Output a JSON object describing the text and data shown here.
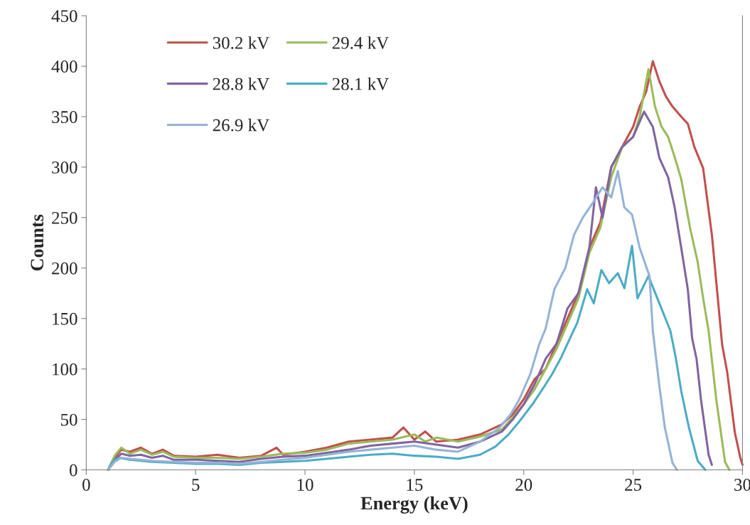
{
  "chart_data": {
    "type": "line",
    "xlabel": "Energy (keV)",
    "ylabel": "Counts",
    "xlim": [
      0,
      30
    ],
    "ylim": [
      0,
      450
    ],
    "xticks": [
      0,
      5,
      10,
      15,
      20,
      25,
      30
    ],
    "yticks": [
      0,
      50,
      100,
      150,
      200,
      250,
      300,
      350,
      400,
      450
    ],
    "grid": false,
    "legend": "top left",
    "marker": "none",
    "line_style": "solid",
    "series": [
      {
        "name": "30.2 kV",
        "color": "#c0504d",
        "x": [
          1.0,
          1.3,
          1.6,
          2.0,
          2.5,
          3.0,
          3.5,
          4.0,
          5.0,
          6.0,
          7.0,
          8.0,
          8.7,
          9.0,
          10.0,
          11.0,
          12.0,
          13.0,
          14.0,
          14.5,
          15.0,
          15.5,
          16.0,
          17.0,
          18.0,
          19.0,
          19.5,
          20.0,
          20.5,
          21.0,
          21.5,
          22.0,
          22.5,
          23.0,
          23.5,
          24.0,
          24.5,
          25.0,
          25.3,
          25.6,
          25.9,
          26.2,
          26.5,
          26.8,
          27.2,
          27.5,
          27.8,
          28.2,
          28.6,
          29.07,
          29.3,
          29.65,
          29.9,
          30.0
        ],
        "values": [
          0,
          12,
          20,
          18,
          22,
          16,
          20,
          14,
          13,
          15,
          12,
          14,
          22,
          15,
          18,
          22,
          28,
          30,
          32,
          42,
          30,
          38,
          28,
          30,
          35,
          45,
          55,
          70,
          90,
          100,
          125,
          150,
          175,
          220,
          245,
          300,
          320,
          340,
          360,
          375,
          405,
          385,
          370,
          360,
          350,
          343,
          320,
          299,
          233,
          124,
          97,
          37,
          12,
          5
        ]
      },
      {
        "name": "29.4 kV",
        "color": "#9bbb59",
        "x": [
          1.0,
          1.3,
          1.6,
          2.0,
          2.5,
          3.0,
          3.5,
          4.0,
          5.0,
          6.0,
          7.0,
          8.0,
          9.0,
          10.0,
          11.0,
          12.0,
          13.0,
          14.0,
          15.0,
          15.5,
          16.0,
          17.0,
          18.0,
          19.0,
          19.5,
          20.0,
          20.5,
          21.0,
          21.5,
          22.0,
          22.5,
          23.0,
          23.5,
          24.0,
          24.5,
          25.0,
          25.3,
          25.7,
          26.0,
          26.3,
          26.6,
          26.9,
          27.2,
          27.6,
          27.95,
          28.2,
          28.45,
          28.8,
          29.2,
          29.4
        ],
        "values": [
          0,
          14,
          22,
          16,
          20,
          15,
          18,
          13,
          12,
          12,
          11,
          13,
          16,
          17,
          20,
          26,
          28,
          30,
          35,
          28,
          32,
          28,
          33,
          40,
          52,
          65,
          80,
          100,
          120,
          145,
          170,
          215,
          240,
          290,
          320,
          330,
          350,
          397,
          360,
          340,
          330,
          310,
          288,
          240,
          206,
          170,
          138,
          70,
          8,
          0
        ]
      },
      {
        "name": "28.8 kV",
        "color": "#8064a2",
        "x": [
          1.0,
          1.3,
          1.6,
          2.0,
          2.5,
          3.0,
          3.5,
          4.0,
          5.0,
          6.0,
          7.0,
          8.0,
          9.0,
          10.0,
          11.0,
          12.0,
          13.0,
          14.0,
          15.0,
          16.0,
          17.0,
          18.0,
          19.0,
          19.5,
          20.0,
          20.5,
          21.0,
          21.5,
          22.0,
          22.5,
          23.0,
          23.3,
          23.6,
          24.0,
          24.5,
          25.0,
          25.5,
          25.9,
          26.2,
          26.6,
          26.9,
          27.2,
          27.5,
          27.7,
          27.9,
          28.1,
          28.45,
          28.6
        ],
        "values": [
          0,
          10,
          16,
          14,
          15,
          12,
          14,
          10,
          10,
          9,
          8,
          11,
          13,
          14,
          17,
          20,
          24,
          26,
          28,
          25,
          22,
          28,
          38,
          50,
          65,
          85,
          110,
          125,
          160,
          175,
          220,
          280,
          250,
          300,
          320,
          330,
          355,
          340,
          309,
          290,
          260,
          220,
          179,
          130,
          110,
          70,
          15,
          5
        ]
      },
      {
        "name": "28.1 kV",
        "color": "#4bacc6",
        "x": [
          1.0,
          1.2,
          1.5,
          2.0,
          2.5,
          3.0,
          4.0,
          5.0,
          6.0,
          7.0,
          8.0,
          9.0,
          10.0,
          11.0,
          12.0,
          13.0,
          14.0,
          15.0,
          16.0,
          17.0,
          18.0,
          18.7,
          19.3,
          19.8,
          20.4,
          20.95,
          21.3,
          21.7,
          22.0,
          22.45,
          22.9,
          23.2,
          23.55,
          23.9,
          24.3,
          24.6,
          24.95,
          25.2,
          25.7,
          26.2,
          26.7,
          26.95,
          27.2,
          27.55,
          27.95,
          28.3
        ],
        "values": [
          0,
          8,
          12,
          10,
          9,
          8,
          7,
          6,
          6,
          5,
          7,
          8,
          9,
          11,
          13,
          15,
          16,
          14,
          13,
          11,
          15,
          23,
          35,
          48,
          65,
          83,
          95,
          111,
          125,
          146,
          179,
          165,
          198,
          185,
          195,
          180,
          222,
          170,
          192,
          165,
          138,
          111,
          78,
          42,
          9,
          0
        ]
      },
      {
        "name": "26.9 kV",
        "color": "#95b3d7",
        "x": [
          1.0,
          1.3,
          1.6,
          2.0,
          2.5,
          3.0,
          4.0,
          5.0,
          6.0,
          7.0,
          8.0,
          9.0,
          10.0,
          11.0,
          12.0,
          13.0,
          14.0,
          15.0,
          16.0,
          17.0,
          18.0,
          18.9,
          19.4,
          19.8,
          20.3,
          20.7,
          21.0,
          21.4,
          21.9,
          22.3,
          22.7,
          23.2,
          23.6,
          24.0,
          24.3,
          24.6,
          24.95,
          25.3,
          25.75,
          25.9,
          26.2,
          26.45,
          26.8,
          27.0
        ],
        "values": [
          0,
          8,
          12,
          11,
          10,
          9,
          8,
          7,
          7,
          6,
          8,
          10,
          12,
          15,
          18,
          20,
          22,
          24,
          20,
          18,
          28,
          42,
          55,
          70,
          95,
          124,
          140,
          179,
          200,
          233,
          250,
          266,
          280,
          270,
          296,
          260,
          253,
          220,
          192,
          138,
          83,
          42,
          7,
          0
        ]
      }
    ]
  }
}
